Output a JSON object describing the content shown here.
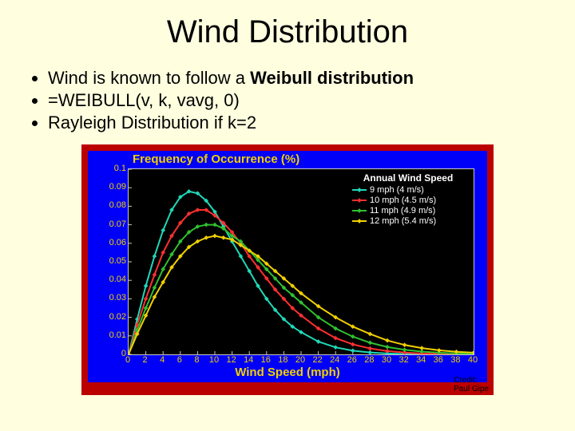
{
  "title": "Wind Distribution",
  "bullets": [
    {
      "pre": "Wind is known to follow a ",
      "bold": "Weibull distribution"
    },
    {
      "pre": "=WEIBULL(v, k, vavg, 0)"
    },
    {
      "pre": "Rayleigh Distribution if k=2"
    }
  ],
  "credit_label1": "Credit:",
  "credit_label2": "Paul Gipe",
  "chart": {
    "type": "line",
    "background_outer": "#bb0000",
    "background_inner": "#0000f8",
    "plot_background": "#000000",
    "axis_color": "#c8c8c8",
    "title": "Frequency of Occurrence (%)",
    "title_color": "#f0d000",
    "title_fontsize": 15,
    "xlabel": "Wind Speed (mph)",
    "label_color": "#f0d000",
    "label_fontsize": 15,
    "tick_color": "#f0d000",
    "tick_fontsize": 11,
    "xlim": [
      0,
      40
    ],
    "ylim": [
      0,
      0.1
    ],
    "xticks": [
      0,
      2,
      4,
      6,
      8,
      10,
      12,
      14,
      16,
      18,
      20,
      22,
      24,
      26,
      28,
      30,
      32,
      34,
      36,
      38,
      40
    ],
    "yticks": [
      0,
      0.01,
      0.02,
      0.03,
      0.04,
      0.05,
      0.06,
      0.07,
      0.08,
      0.09,
      0.1
    ],
    "legend": {
      "title": "Annual Wind Speed",
      "title_color": "#ffffff",
      "position": "upper-right",
      "items": [
        {
          "label": "9 mph (4 m/s)",
          "color": "#20d8b8"
        },
        {
          "label": "10 mph (4.5 m/s)",
          "color": "#ff3030"
        },
        {
          "label": "11 mph (4.9 m/s)",
          "color": "#30c030"
        },
        {
          "label": "12 mph (5.4 m/s)",
          "color": "#f0d000"
        }
      ]
    },
    "line_width": 2,
    "marker": "diamond",
    "marker_size": 4,
    "series": [
      {
        "name": "9 mph",
        "color": "#20d8b8",
        "x": [
          0,
          1,
          2,
          3,
          4,
          5,
          6,
          7,
          8,
          9,
          10,
          11,
          12,
          13,
          14,
          15,
          16,
          17,
          18,
          19,
          20,
          22,
          24,
          26,
          28,
          30,
          32,
          34,
          36,
          38,
          40
        ],
        "y": [
          0,
          0.019,
          0.037,
          0.053,
          0.067,
          0.078,
          0.085,
          0.088,
          0.087,
          0.083,
          0.077,
          0.069,
          0.061,
          0.053,
          0.045,
          0.037,
          0.03,
          0.024,
          0.019,
          0.015,
          0.012,
          0.0069,
          0.0038,
          0.002,
          0.001,
          0.0005,
          0.0002,
          0.0001,
          5e-05,
          2e-05,
          1e-05
        ]
      },
      {
        "name": "10 mph",
        "color": "#ff3030",
        "x": [
          0,
          1,
          2,
          3,
          4,
          5,
          6,
          7,
          8,
          9,
          10,
          11,
          12,
          13,
          14,
          15,
          16,
          17,
          18,
          19,
          20,
          22,
          24,
          26,
          28,
          30,
          32,
          34,
          36,
          38,
          40
        ],
        "y": [
          0,
          0.016,
          0.03,
          0.043,
          0.055,
          0.064,
          0.071,
          0.076,
          0.078,
          0.078,
          0.075,
          0.071,
          0.066,
          0.06,
          0.053,
          0.047,
          0.041,
          0.035,
          0.03,
          0.025,
          0.021,
          0.014,
          0.0088,
          0.0054,
          0.0032,
          0.0018,
          0.001,
          0.0005,
          0.0003,
          0.0001,
          7e-05
        ]
      },
      {
        "name": "11 mph",
        "color": "#30c030",
        "x": [
          0,
          1,
          2,
          3,
          4,
          5,
          6,
          7,
          8,
          9,
          10,
          11,
          12,
          13,
          14,
          15,
          16,
          17,
          18,
          19,
          20,
          22,
          24,
          26,
          28,
          30,
          32,
          34,
          36,
          38,
          40
        ],
        "y": [
          0,
          0.013,
          0.025,
          0.036,
          0.046,
          0.054,
          0.061,
          0.066,
          0.069,
          0.07,
          0.07,
          0.068,
          0.064,
          0.061,
          0.056,
          0.051,
          0.046,
          0.041,
          0.036,
          0.032,
          0.028,
          0.02,
          0.014,
          0.0096,
          0.0063,
          0.004,
          0.0025,
          0.0015,
          0.0009,
          0.0005,
          0.0003
        ]
      },
      {
        "name": "12 mph",
        "color": "#f0d000",
        "x": [
          0,
          1,
          2,
          3,
          4,
          5,
          6,
          7,
          8,
          9,
          10,
          11,
          12,
          13,
          14,
          15,
          16,
          17,
          18,
          19,
          20,
          22,
          24,
          26,
          28,
          30,
          32,
          34,
          36,
          38,
          40
        ],
        "y": [
          0,
          0.011,
          0.021,
          0.031,
          0.039,
          0.047,
          0.053,
          0.058,
          0.061,
          0.063,
          0.064,
          0.063,
          0.062,
          0.059,
          0.056,
          0.053,
          0.049,
          0.045,
          0.041,
          0.037,
          0.033,
          0.026,
          0.02,
          0.015,
          0.011,
          0.0075,
          0.0051,
          0.0034,
          0.0022,
          0.0014,
          0.0009
        ]
      }
    ]
  }
}
